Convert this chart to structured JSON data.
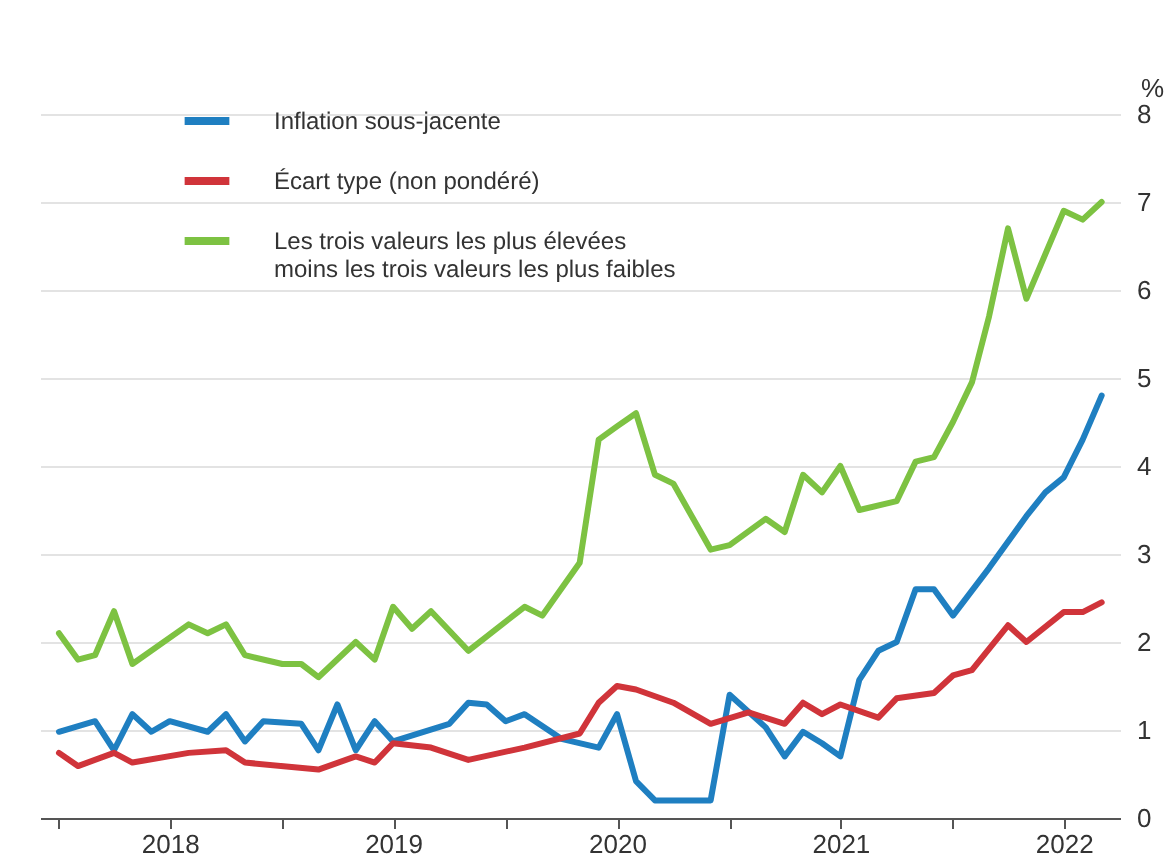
{
  "chart_data": {
    "type": "line",
    "ylabel": "%",
    "xlim": [
      "2017-12",
      "2022-10"
    ],
    "ylim": [
      0,
      8
    ],
    "yticks": [
      0,
      1,
      2,
      3,
      4,
      5,
      6,
      7,
      8
    ],
    "xticks": [
      {
        "value": "2018-01",
        "label": null
      },
      {
        "value": "2018-07",
        "label": "2018"
      },
      {
        "value": "2019-01",
        "label": null
      },
      {
        "value": "2019-07",
        "label": "2019"
      },
      {
        "value": "2020-01",
        "label": null
      },
      {
        "value": "2020-07",
        "label": "2020"
      },
      {
        "value": "2021-01",
        "label": null
      },
      {
        "value": "2021-07",
        "label": "2021"
      },
      {
        "value": "2022-01",
        "label": null
      },
      {
        "value": "2022-07",
        "label": "2022"
      }
    ],
    "grid": "y",
    "legend": "top left",
    "line_style": "solid",
    "series": [
      {
        "name": "Inflation sous-jacente",
        "color": "#1f7fc1",
        "x": [
          "2018-01",
          "2018-03",
          "2018-04",
          "2018-05",
          "2018-06",
          "2018-07",
          "2018-09",
          "2018-10",
          "2018-11",
          "2018-12",
          "2019-02",
          "2019-03",
          "2019-04",
          "2019-05",
          "2019-06",
          "2019-07",
          "2019-10",
          "2019-11",
          "2019-12",
          "2020-01",
          "2020-02",
          "2020-04",
          "2020-06",
          "2020-07",
          "2020-08",
          "2020-09",
          "2020-12",
          "2021-01",
          "2021-03",
          "2021-04",
          "2021-05",
          "2021-06",
          "2021-07",
          "2021-08",
          "2021-09",
          "2021-10",
          "2021-11",
          "2021-12",
          "2022-01",
          "2022-03",
          "2022-05",
          "2022-06",
          "2022-07",
          "2022-08",
          "2022-09"
        ],
        "values": [
          0.98,
          1.1,
          0.77,
          1.18,
          0.98,
          1.1,
          0.98,
          1.18,
          0.87,
          1.1,
          1.07,
          0.77,
          1.29,
          0.77,
          1.1,
          0.87,
          1.07,
          1.31,
          1.29,
          1.1,
          1.18,
          0.9,
          0.8,
          1.18,
          0.42,
          0.2,
          0.2,
          1.4,
          1.03,
          0.7,
          0.98,
          0.85,
          0.7,
          1.57,
          1.9,
          2.0,
          2.6,
          2.6,
          2.3,
          2.84,
          3.43,
          3.7,
          3.87,
          4.3,
          4.8
        ]
      },
      {
        "name": "Écart type (non pondéré)",
        "color": "#d0343a",
        "x": [
          "2018-01",
          "2018-02",
          "2018-04",
          "2018-05",
          "2018-08",
          "2018-10",
          "2018-11",
          "2019-03",
          "2019-05",
          "2019-06",
          "2019-07",
          "2019-09",
          "2019-11",
          "2020-02",
          "2020-05",
          "2020-06",
          "2020-07",
          "2020-08",
          "2020-10",
          "2020-12",
          "2021-02",
          "2021-04",
          "2021-05",
          "2021-06",
          "2021-07",
          "2021-09",
          "2021-10",
          "2021-12",
          "2022-01",
          "2022-02",
          "2022-04",
          "2022-05",
          "2022-07",
          "2022-08",
          "2022-09"
        ],
        "values": [
          0.74,
          0.59,
          0.74,
          0.63,
          0.74,
          0.77,
          0.63,
          0.55,
          0.7,
          0.63,
          0.85,
          0.8,
          0.66,
          0.8,
          0.96,
          1.31,
          1.5,
          1.46,
          1.31,
          1.07,
          1.2,
          1.07,
          1.31,
          1.18,
          1.29,
          1.14,
          1.36,
          1.42,
          1.62,
          1.68,
          2.19,
          2.0,
          2.34,
          2.34,
          2.45
        ]
      },
      {
        "name": "Les trois valeurs les plus élevées\nmoins les trois valeurs les plus faibles",
        "color": "#7dc242",
        "x": [
          "2018-01",
          "2018-02",
          "2018-03",
          "2018-04",
          "2018-05",
          "2018-08",
          "2018-09",
          "2018-10",
          "2018-11",
          "2019-01",
          "2019-02",
          "2019-03",
          "2019-05",
          "2019-06",
          "2019-07",
          "2019-08",
          "2019-09",
          "2019-11",
          "2020-02",
          "2020-03",
          "2020-05",
          "2020-06",
          "2020-07",
          "2020-08",
          "2020-09",
          "2020-10",
          "2020-12",
          "2021-01",
          "2021-03",
          "2021-04",
          "2021-05",
          "2021-06",
          "2021-07",
          "2021-08",
          "2021-10",
          "2021-11",
          "2021-12",
          "2022-01",
          "2022-02",
          "2022-03",
          "2022-04",
          "2022-05",
          "2022-07",
          "2022-08",
          "2022-09"
        ],
        "values": [
          2.1,
          1.8,
          1.85,
          2.35,
          1.75,
          2.2,
          2.1,
          2.2,
          1.85,
          1.75,
          1.75,
          1.6,
          2.0,
          1.8,
          2.4,
          2.15,
          2.35,
          1.9,
          2.4,
          2.3,
          2.9,
          4.3,
          4.45,
          4.6,
          3.9,
          3.8,
          3.05,
          3.1,
          3.4,
          3.25,
          3.9,
          3.7,
          4.0,
          3.5,
          3.6,
          4.05,
          4.1,
          4.5,
          4.95,
          5.7,
          6.7,
          5.9,
          6.9,
          6.8,
          7.0
        ]
      }
    ]
  }
}
